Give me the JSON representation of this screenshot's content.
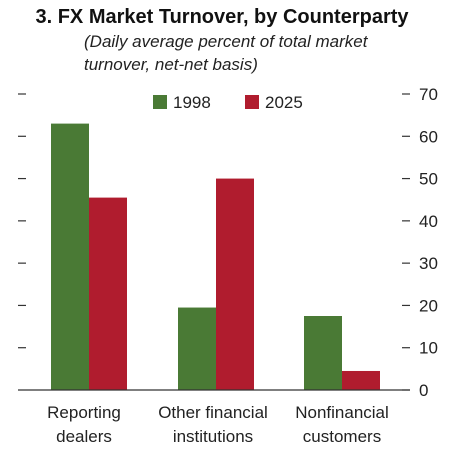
{
  "chart_data": {
    "type": "bar",
    "title": "3. FX Market Turnover, by Counterparty",
    "subtitle_lines": [
      "(Daily average percent of total market",
      "turnover, net-net basis)"
    ],
    "categories": [
      [
        "Reporting",
        "dealers"
      ],
      [
        "Other financial",
        "institutions"
      ],
      [
        "Nonfinancial",
        "customers"
      ]
    ],
    "series": [
      {
        "name": "1998",
        "color": "#4a7a35",
        "values": [
          63,
          19.5,
          17.5
        ]
      },
      {
        "name": "2025",
        "color": "#b01c2e",
        "values": [
          45.5,
          50,
          4.5
        ]
      }
    ],
    "ylim": [
      0,
      70
    ],
    "yticks": [
      0,
      10,
      20,
      30,
      40,
      50,
      60,
      70
    ],
    "y_axis_side": "right",
    "left_tick_marks": true,
    "grid": false,
    "legend_position": "top-center"
  }
}
